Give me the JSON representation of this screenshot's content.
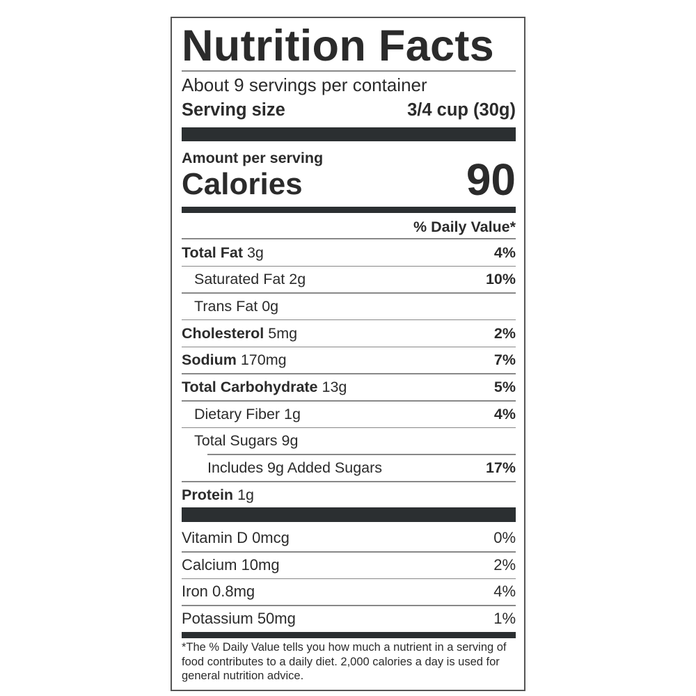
{
  "title": "Nutrition Facts",
  "servings_per_container": "About 9 servings per container",
  "serving_size": {
    "label": "Serving size",
    "value": "3/4 cup (30g)"
  },
  "amount_per_serving": "Amount per serving",
  "calories": {
    "label": "Calories",
    "value": "90"
  },
  "daily_value_header": "% Daily Value*",
  "nutrients": [
    {
      "name": "Total Fat",
      "amount": "3g",
      "dv": "4%"
    },
    {
      "name": "Saturated Fat",
      "amount": "2g",
      "dv": "10%"
    },
    {
      "name": "Trans Fat",
      "amount": "0g",
      "dv": ""
    },
    {
      "name": "Cholesterol",
      "amount": "5mg",
      "dv": "2%"
    },
    {
      "name": "Sodium",
      "amount": "170mg",
      "dv": "7%"
    },
    {
      "name": "Total Carbohydrate",
      "amount": "13g",
      "dv": "5%"
    },
    {
      "name": "Dietary Fiber",
      "amount": "1g",
      "dv": "4%"
    },
    {
      "name": "Total Sugars",
      "amount": "9g",
      "dv": ""
    },
    {
      "name": "Includes 9g Added Sugars",
      "amount": "",
      "dv": "17%"
    },
    {
      "name": "Protein",
      "amount": "1g",
      "dv": ""
    }
  ],
  "vitamins": [
    {
      "label": "Vitamin D 0mcg",
      "dv": "0%"
    },
    {
      "label": "Calcium 10mg",
      "dv": "2%"
    },
    {
      "label": "Iron 0.8mg",
      "dv": "4%"
    },
    {
      "label": "Potassium 50mg",
      "dv": "1%"
    }
  ],
  "footnote": "*The % Daily Value tells you how much a nutrient in a serving of food contributes to a daily diet. 2,000 calories a day is used for general nutrition advice."
}
